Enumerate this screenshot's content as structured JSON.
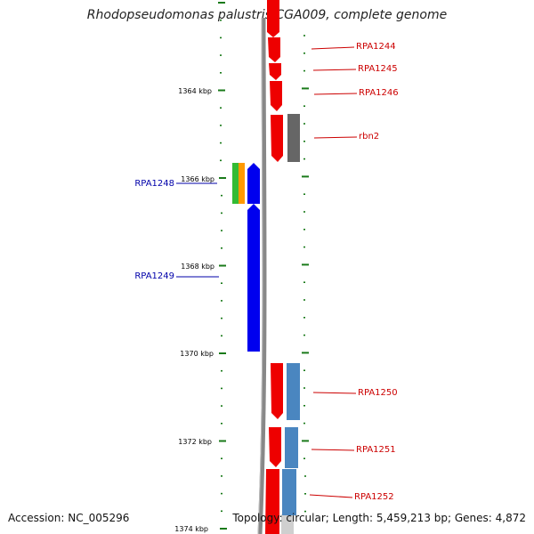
{
  "title": "Rhodopseudomonas palustris CGA009, complete genome",
  "footer": {
    "accession": "Accession: NC_005296",
    "summary": "Topology: circular; Length: 5,459,213 bp; Genes: 4,872"
  },
  "colors": {
    "forward": "#ee0000",
    "reverse": "#0000ee",
    "forward_label": "#cc0000",
    "reverse_label": "#0000aa",
    "tick": "#1a7a1a",
    "rna": "#666666",
    "blue_gene": "#4a86c0",
    "green_gene": "#33bb33",
    "orange_gene": "#ff9900"
  },
  "kbp_labels": [
    "1364 kbp",
    "1366 kbp",
    "1368 kbp",
    "1370 kbp",
    "1372 kbp",
    "1374 kbp"
  ],
  "forward_genes": [
    {
      "label": "RPA1244"
    },
    {
      "label": "RPA1245"
    },
    {
      "label": "RPA1246"
    },
    {
      "label": "rbn2"
    },
    {
      "label": "RPA1250"
    },
    {
      "label": "RPA1251"
    },
    {
      "label": "RPA1252"
    }
  ],
  "reverse_genes": [
    {
      "label": "RPA1248"
    },
    {
      "label": "RPA1249"
    }
  ]
}
